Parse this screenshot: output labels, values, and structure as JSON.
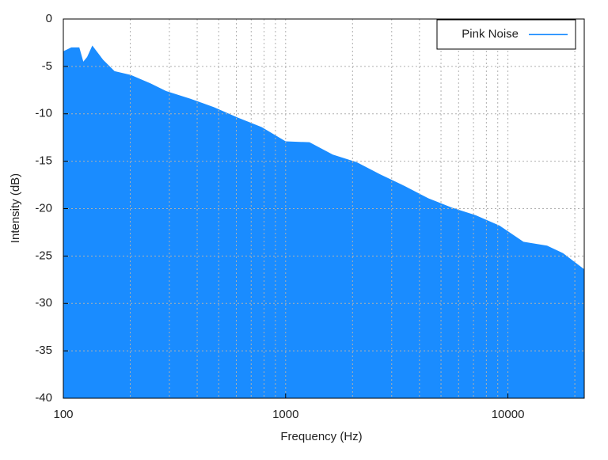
{
  "chart_data": {
    "type": "area",
    "xlabel": "Frequency (Hz)",
    "ylabel": "Intensity (dB)",
    "xscale": "log",
    "xlim": [
      100,
      22050
    ],
    "xticks": [
      100,
      1000,
      10000
    ],
    "ylim": [
      -40,
      0
    ],
    "yticks": [
      0,
      -5,
      -10,
      -15,
      -20,
      -25,
      -30,
      -35,
      -40
    ],
    "grid": true,
    "minor_grid": true,
    "legend": "upper right",
    "series": [
      {
        "name": "Pink Noise",
        "color": "#1a8cff",
        "x": [
          100,
          108.6,
          118,
          123,
          128,
          135,
          151,
          170,
          201,
          247,
          290,
          372,
          476,
          609,
          780,
          1000,
          1280,
          1630,
          2090,
          2670,
          3420,
          4380,
          5600,
          7170,
          9180,
          11750,
          15000,
          17700,
          22050
        ],
        "values": [
          -3.4,
          -3.0,
          -3.0,
          -4.5,
          -4.0,
          -2.8,
          -4.3,
          -5.5,
          -5.9,
          -6.8,
          -7.6,
          -8.4,
          -9.3,
          -10.4,
          -11.4,
          -12.9,
          -13.0,
          -14.3,
          -15.1,
          -16.4,
          -17.6,
          -18.9,
          -19.9,
          -20.7,
          -21.8,
          -23.5,
          -23.9,
          -24.7,
          -26.4
        ]
      }
    ]
  }
}
